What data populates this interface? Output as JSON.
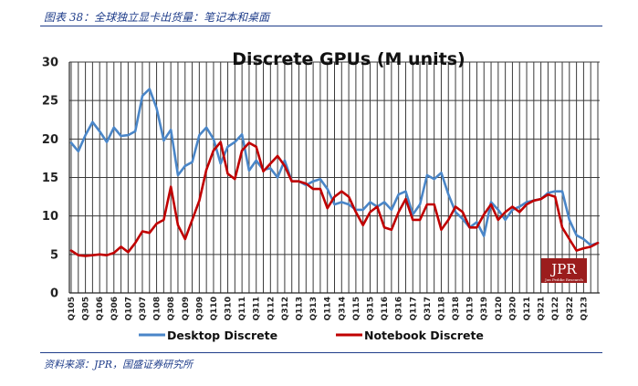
{
  "figure": {
    "caption": "图表 38：全球独立显卡出货量：笔记本和桌面",
    "source": "资料来源：JPR，国盛证券研究所"
  },
  "logo": {
    "text": "JPR",
    "subtext": "Jon Peddie Research"
  },
  "colors": {
    "desktop": "#4a86c8",
    "notebook": "#c00000",
    "logo_bg": "#9b1d1d"
  },
  "chart_data": {
    "type": "line",
    "title": "Discrete GPUs (M units)",
    "xlabel": "",
    "ylabel": "",
    "ylim": [
      0,
      30
    ],
    "yticks": [
      0,
      5,
      10,
      15,
      20,
      25,
      30
    ],
    "grid": true,
    "legend_position": "bottom",
    "x_tick_labels": [
      "Q105",
      "Q305",
      "Q106",
      "Q306",
      "Q107",
      "Q307",
      "Q108",
      "Q308",
      "Q109",
      "Q309",
      "Q110",
      "Q310",
      "Q111",
      "Q311",
      "Q112",
      "Q312",
      "Q113",
      "Q313",
      "Q114",
      "Q314",
      "Q115",
      "Q315",
      "Q116",
      "Q316",
      "Q117",
      "Q317",
      "Q118",
      "Q318",
      "Q119",
      "Q319",
      "Q120",
      "Q320",
      "Q121",
      "Q321",
      "Q122",
      "Q322",
      "Q123"
    ],
    "series": [
      {
        "name": "Desktop Discrete",
        "values": [
          19.5,
          18.4,
          20.5,
          22.2,
          21.0,
          19.6,
          21.5,
          20.4,
          20.5,
          21.0,
          25.6,
          26.5,
          24.0,
          19.8,
          21.2,
          15.3,
          16.5,
          17.0,
          20.5,
          21.5,
          20.0,
          16.8,
          19.0,
          19.6,
          20.6,
          15.9,
          17.2,
          16.0,
          16.2,
          15.0,
          17.2,
          14.5,
          14.5,
          14.0,
          14.5,
          14.8,
          13.5,
          11.5,
          11.8,
          11.5,
          10.8,
          10.8,
          11.8,
          11.2,
          11.8,
          10.8,
          12.8,
          13.2,
          10.2,
          11.5,
          15.3,
          14.8,
          15.6,
          12.8,
          10.5,
          9.6,
          8.5,
          9.2,
          7.4,
          11.8,
          10.8,
          9.5,
          10.8,
          11.2,
          11.8,
          12.0,
          12.2,
          13.0,
          13.2,
          13.2,
          9.5,
          7.5,
          7.0,
          6.2,
          6.5
        ]
      },
      {
        "name": "Notebook Discrete",
        "values": [
          5.5,
          4.9,
          4.8,
          4.9,
          5.0,
          4.9,
          5.2,
          6.0,
          5.3,
          6.5,
          8.0,
          7.8,
          9.0,
          9.5,
          13.8,
          8.8,
          7.0,
          9.5,
          12.0,
          16.0,
          18.5,
          19.6,
          15.5,
          14.8,
          18.5,
          19.5,
          19.0,
          15.8,
          16.8,
          17.8,
          16.5,
          14.5,
          14.5,
          14.2,
          13.5,
          13.5,
          11.0,
          12.5,
          13.2,
          12.5,
          10.5,
          8.8,
          10.5,
          11.2,
          8.5,
          8.2,
          10.5,
          12.2,
          9.5,
          9.5,
          11.5,
          11.5,
          8.2,
          9.5,
          11.2,
          10.5,
          8.5,
          8.5,
          10.2,
          11.5,
          9.5,
          10.5,
          11.2,
          10.5,
          11.5,
          12.0,
          12.2,
          12.8,
          12.5,
          8.5,
          7.0,
          5.5,
          5.8,
          6.0,
          6.5
        ]
      }
    ]
  }
}
